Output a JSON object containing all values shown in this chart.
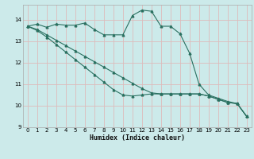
{
  "xlabel": "Humidex (Indice chaleur)",
  "x_values": [
    0,
    1,
    2,
    3,
    4,
    5,
    6,
    7,
    8,
    9,
    10,
    11,
    12,
    13,
    14,
    15,
    16,
    17,
    18,
    19,
    20,
    21,
    22,
    23
  ],
  "line1": [
    13.7,
    13.8,
    13.65,
    13.8,
    13.75,
    13.75,
    13.85,
    13.55,
    13.3,
    13.3,
    13.3,
    14.2,
    14.45,
    14.4,
    13.7,
    13.7,
    13.35,
    12.45,
    11.0,
    10.5,
    10.35,
    10.2,
    10.1,
    9.5
  ],
  "line2": [
    13.7,
    13.55,
    13.3,
    13.05,
    12.8,
    12.55,
    12.3,
    12.05,
    11.8,
    11.55,
    11.3,
    11.05,
    10.8,
    10.6,
    10.55,
    10.55,
    10.55,
    10.55,
    10.55,
    10.45,
    10.3,
    10.15,
    10.1,
    9.5
  ],
  "line3": [
    13.7,
    13.5,
    13.2,
    12.85,
    12.5,
    12.15,
    11.8,
    11.45,
    11.1,
    10.75,
    10.5,
    10.45,
    10.5,
    10.55,
    10.55,
    10.55,
    10.55,
    10.55,
    10.55,
    10.45,
    10.3,
    10.15,
    10.1,
    9.5
  ],
  "ylim": [
    9,
    14.7
  ],
  "yticks": [
    9,
    10,
    11,
    12,
    13,
    14
  ],
  "bg_color": "#cceaea",
  "grid_color": "#ddbbbb",
  "line_color": "#2a7060"
}
